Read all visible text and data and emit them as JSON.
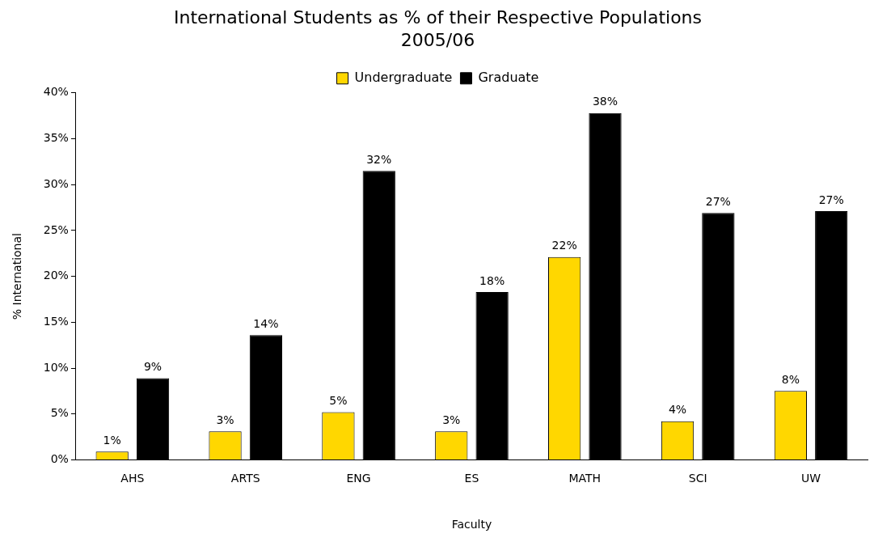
{
  "chart_data": {
    "type": "bar",
    "title": "International Students as % of their Respective Populations",
    "subtitle": "2005/06",
    "xlabel": "Faculty",
    "ylabel": "% International",
    "categories": [
      "AHS",
      "ARTS",
      "ENG",
      "ES",
      "MATH",
      "SCI",
      "UW"
    ],
    "series": [
      {
        "name": "Undergraduate",
        "color": "#ffd700",
        "values": [
          0.9,
          3.1,
          5.2,
          3.1,
          22.1,
          4.2,
          7.5
        ],
        "value_labels": [
          "1%",
          "3%",
          "5%",
          "3%",
          "22%",
          "4%",
          "8%"
        ]
      },
      {
        "name": "Graduate",
        "color": "#000000",
        "values": [
          8.9,
          13.6,
          31.5,
          18.3,
          37.8,
          26.9,
          27.1
        ],
        "value_labels": [
          "9%",
          "14%",
          "32%",
          "18%",
          "38%",
          "27%",
          "27%"
        ]
      }
    ],
    "ylim": [
      0,
      40
    ],
    "yticks": [
      {
        "value": 0,
        "label": "0%"
      },
      {
        "value": 5,
        "label": "5%"
      },
      {
        "value": 10,
        "label": "10%"
      },
      {
        "value": 15,
        "label": "15%"
      },
      {
        "value": 20,
        "label": "20%"
      },
      {
        "value": 25,
        "label": "25%"
      },
      {
        "value": 30,
        "label": "30%"
      },
      {
        "value": 35,
        "label": "35%"
      },
      {
        "value": 40,
        "label": "40%"
      }
    ],
    "grid": false,
    "legend": "top"
  }
}
